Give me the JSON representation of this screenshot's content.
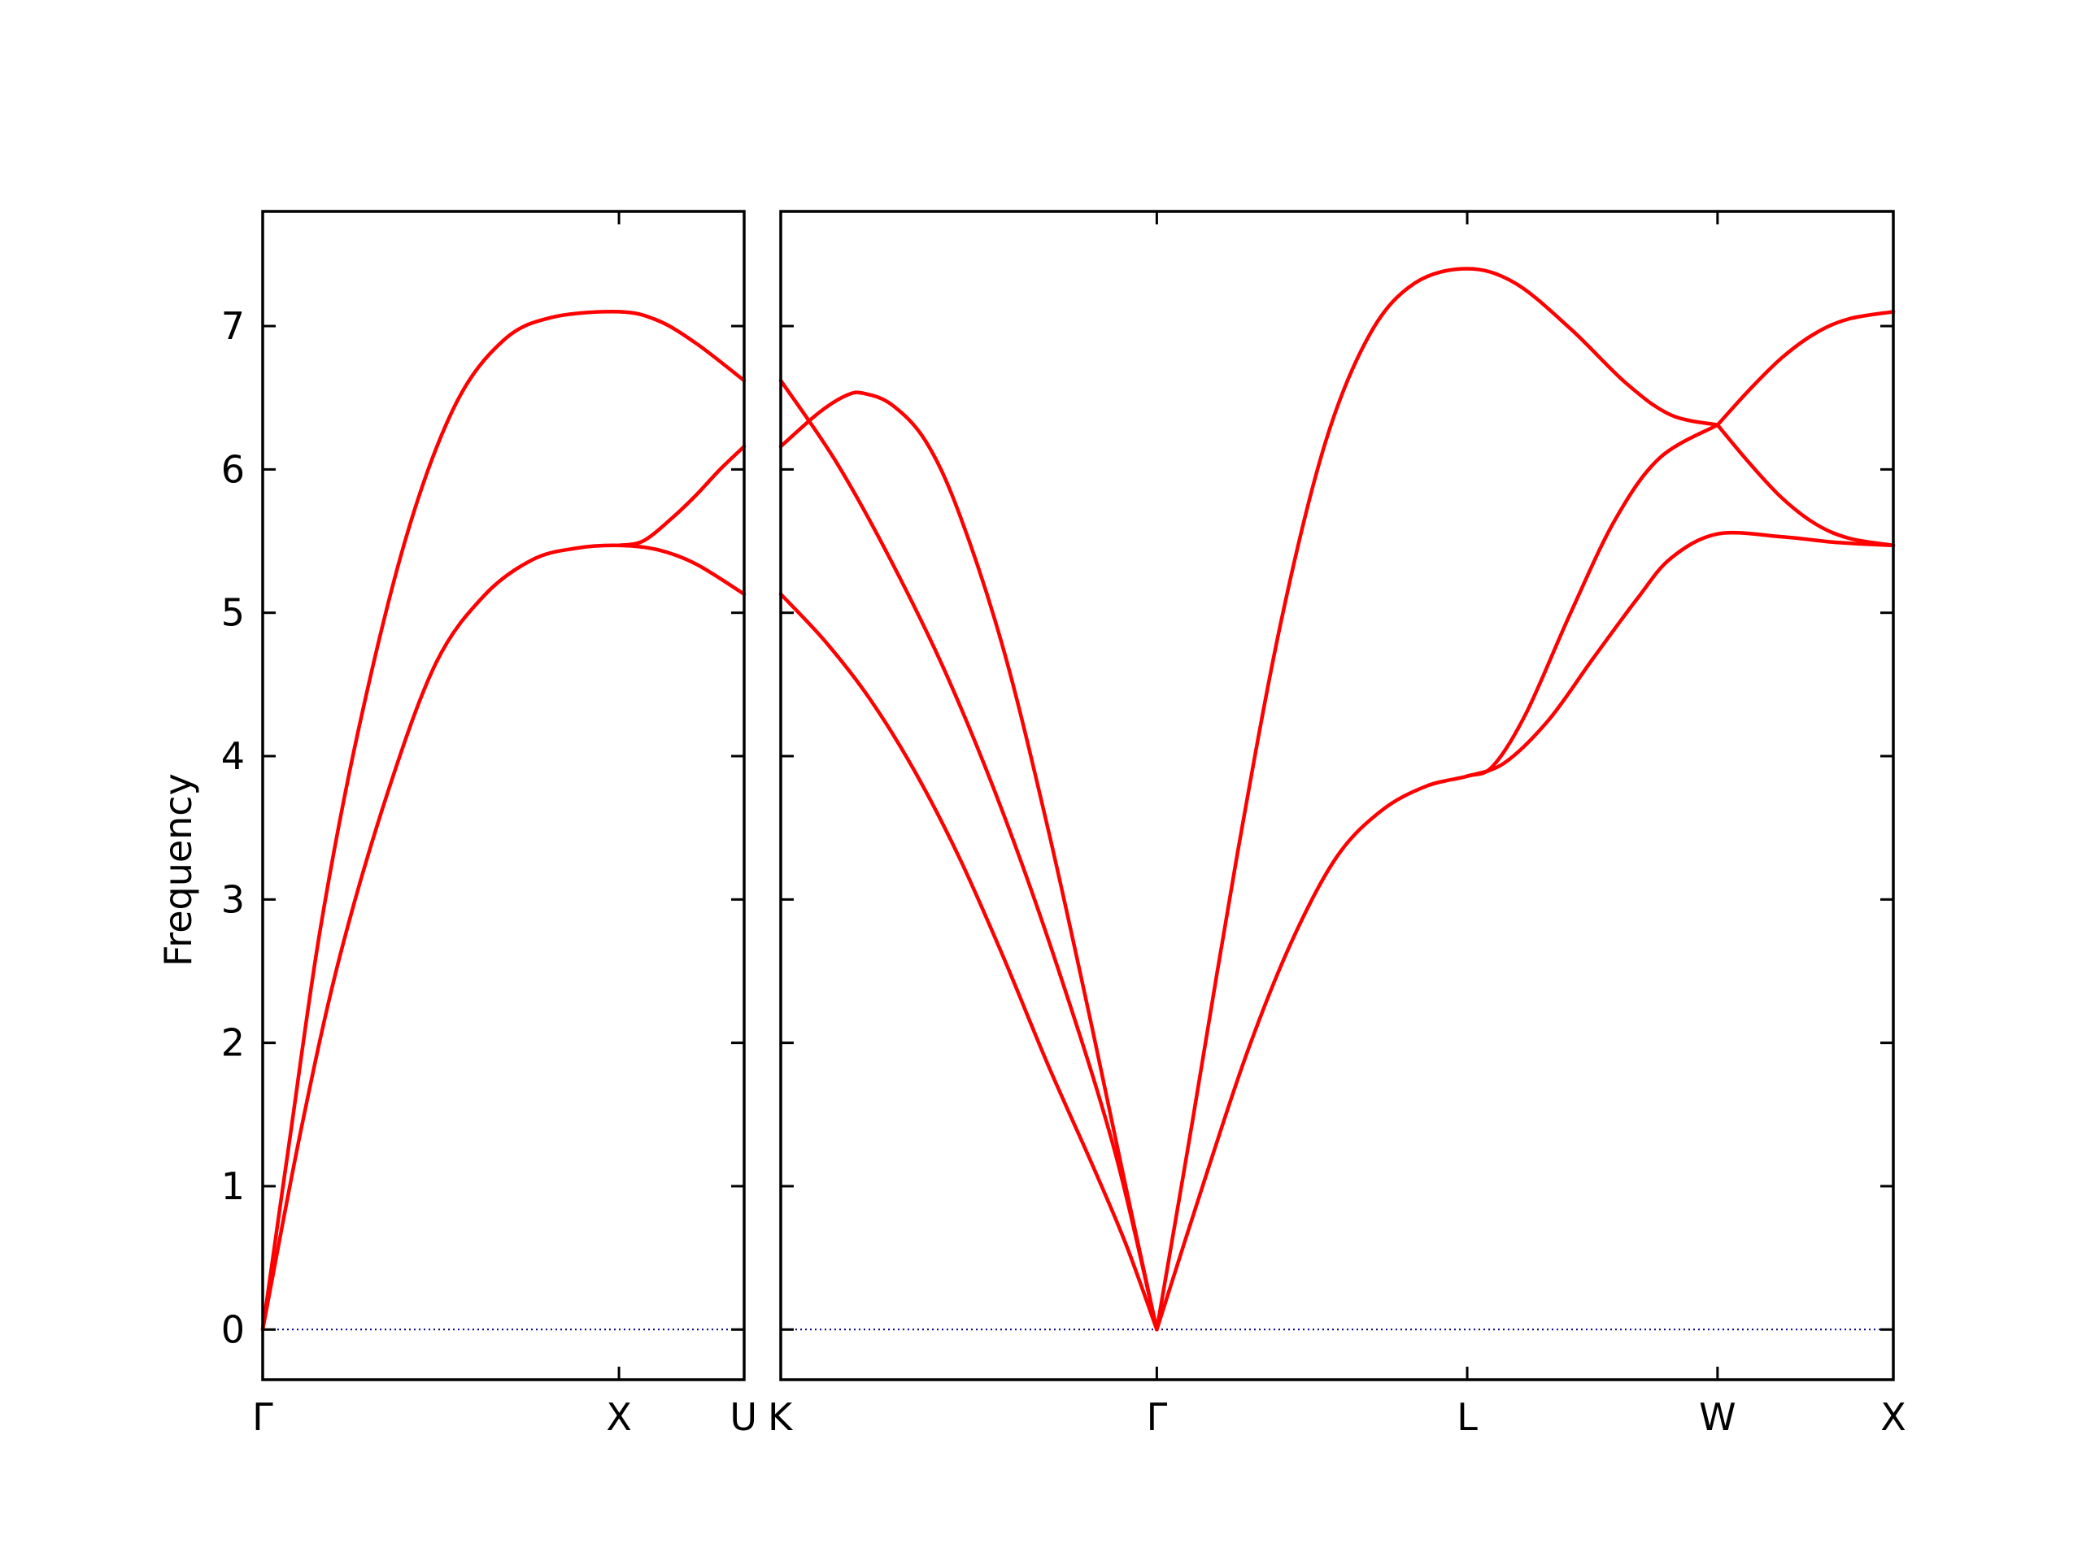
{
  "chart_data": {
    "type": "line",
    "ylabel": "Frequency",
    "ylim": [
      -0.35,
      7.8
    ],
    "yticks": [
      0,
      1,
      2,
      3,
      4,
      5,
      6,
      7
    ],
    "line_color": "#ff0000",
    "zero_line_color": "#00008b",
    "grid": false,
    "panels": [
      {
        "name": "panel-gamma-x-u",
        "xlim": [
          0,
          1
        ],
        "x_ticks": [
          {
            "x": 0,
            "label": "Γ"
          },
          {
            "x": 0.74,
            "label": "X"
          },
          {
            "x": 1,
            "label": "U"
          }
        ],
        "series": [
          {
            "points": [
              [
                0,
                0
              ],
              [
                0.055,
                1.3
              ],
              [
                0.12,
                2.8
              ],
              [
                0.2,
                4.2
              ],
              [
                0.3,
                5.55
              ],
              [
                0.4,
                6.45
              ],
              [
                0.5,
                6.9
              ],
              [
                0.6,
                7.06
              ],
              [
                0.74,
                7.1
              ],
              [
                0.82,
                7.04
              ],
              [
                0.9,
                6.88
              ],
              [
                1,
                6.62
              ]
            ]
          },
          {
            "points": [
              [
                0,
                0
              ],
              [
                0.08,
                1.4
              ],
              [
                0.16,
                2.6
              ],
              [
                0.26,
                3.75
              ],
              [
                0.36,
                4.65
              ],
              [
                0.46,
                5.12
              ],
              [
                0.56,
                5.37
              ],
              [
                0.65,
                5.45
              ],
              [
                0.74,
                5.47
              ],
              [
                0.82,
                5.44
              ],
              [
                0.9,
                5.34
              ],
              [
                1,
                5.13
              ]
            ]
          },
          {
            "points": [
              [
                0.74,
                5.47
              ],
              [
                0.79,
                5.5
              ],
              [
                0.85,
                5.66
              ],
              [
                0.9,
                5.82
              ],
              [
                0.95,
                6.0
              ],
              [
                1,
                6.16
              ]
            ]
          }
        ]
      },
      {
        "name": "panel-k-gamma-l-w-x",
        "xlim": [
          0,
          1
        ],
        "x_ticks": [
          {
            "x": 0,
            "label": "K"
          },
          {
            "x": 0.338,
            "label": "Γ"
          },
          {
            "x": 0.617,
            "label": "L"
          },
          {
            "x": 0.842,
            "label": "W"
          },
          {
            "x": 1,
            "label": "X"
          }
        ],
        "series": [
          {
            "points": [
              [
                0,
                6.16
              ],
              [
                0.035,
                6.4
              ],
              [
                0.06,
                6.52
              ],
              [
                0.075,
                6.53
              ],
              [
                0.1,
                6.45
              ],
              [
                0.13,
                6.2
              ],
              [
                0.16,
                5.7
              ],
              [
                0.2,
                4.75
              ],
              [
                0.24,
                3.5
              ],
              [
                0.28,
                2.1
              ],
              [
                0.31,
                1.0
              ],
              [
                0.338,
                0
              ]
            ]
          },
          {
            "points": [
              [
                0,
                6.62
              ],
              [
                0.05,
                6.05
              ],
              [
                0.1,
                5.35
              ],
              [
                0.15,
                4.55
              ],
              [
                0.2,
                3.6
              ],
              [
                0.25,
                2.5
              ],
              [
                0.3,
                1.25
              ],
              [
                0.338,
                0
              ]
            ]
          },
          {
            "points": [
              [
                0,
                5.13
              ],
              [
                0.04,
                4.8
              ],
              [
                0.08,
                4.4
              ],
              [
                0.12,
                3.9
              ],
              [
                0.16,
                3.3
              ],
              [
                0.2,
                2.6
              ],
              [
                0.24,
                1.85
              ],
              [
                0.28,
                1.15
              ],
              [
                0.31,
                0.6
              ],
              [
                0.338,
                0
              ]
            ]
          },
          {
            "points": [
              [
                0.338,
                0
              ],
              [
                0.37,
                1.45
              ],
              [
                0.41,
                3.3
              ],
              [
                0.45,
                4.95
              ],
              [
                0.49,
                6.2
              ],
              [
                0.53,
                6.95
              ],
              [
                0.57,
                7.3
              ],
              [
                0.617,
                7.4
              ],
              [
                0.66,
                7.3
              ],
              [
                0.71,
                6.98
              ],
              [
                0.76,
                6.6
              ],
              [
                0.8,
                6.38
              ],
              [
                0.842,
                6.31
              ]
            ]
          },
          {
            "points": [
              [
                0.338,
                0
              ],
              [
                0.38,
                1.02
              ],
              [
                0.42,
                1.95
              ],
              [
                0.46,
                2.72
              ],
              [
                0.5,
                3.3
              ],
              [
                0.54,
                3.62
              ],
              [
                0.58,
                3.79
              ],
              [
                0.617,
                3.86
              ],
              [
                0.64,
                3.93
              ],
              [
                0.67,
                4.3
              ],
              [
                0.71,
                5.0
              ],
              [
                0.75,
                5.65
              ],
              [
                0.79,
                6.08
              ],
              [
                0.842,
                6.31
              ]
            ]
          },
          {
            "points": [
              [
                0.617,
                3.86
              ],
              [
                0.65,
                3.95
              ],
              [
                0.69,
                4.25
              ],
              [
                0.73,
                4.68
              ],
              [
                0.77,
                5.1
              ],
              [
                0.8,
                5.38
              ],
              [
                0.842,
                5.55
              ],
              [
                0.9,
                5.53
              ],
              [
                0.95,
                5.49
              ],
              [
                1,
                5.47
              ]
            ]
          },
          {
            "points": [
              [
                0.842,
                6.31
              ],
              [
                0.87,
                6.55
              ],
              [
                0.9,
                6.78
              ],
              [
                0.93,
                6.95
              ],
              [
                0.96,
                7.05
              ],
              [
                1,
                7.1
              ]
            ]
          },
          {
            "points": [
              [
                0.842,
                6.31
              ],
              [
                0.87,
                6.05
              ],
              [
                0.9,
                5.8
              ],
              [
                0.93,
                5.62
              ],
              [
                0.96,
                5.52
              ],
              [
                1,
                5.47
              ]
            ]
          }
        ]
      }
    ]
  }
}
